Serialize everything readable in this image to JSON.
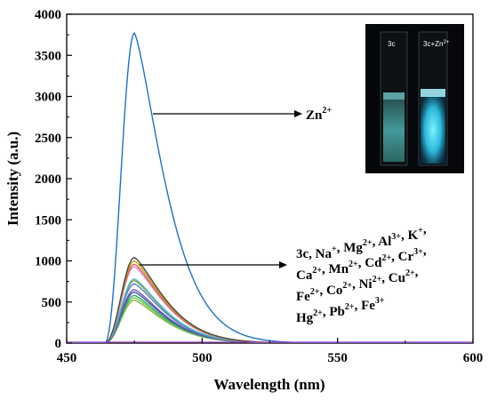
{
  "chart_data": {
    "type": "line",
    "title": "",
    "xlabel": "Wavelength (nm)",
    "ylabel": "Intensity (a.u.)",
    "xlim": [
      450,
      600
    ],
    "ylim": [
      0,
      4000
    ],
    "xticks": [
      450,
      500,
      550,
      600
    ],
    "yticks": [
      0,
      500,
      1000,
      1500,
      2000,
      2500,
      3000,
      3500,
      4000
    ],
    "grid": false,
    "legend": "none",
    "peak_wavelength": 475,
    "series": [
      {
        "label_group": "zn",
        "peak": 3770,
        "color": "#1f6fc9"
      },
      {
        "label_group": "others",
        "peak": 1040,
        "color": "#4a4a4a"
      },
      {
        "label_group": "others",
        "peak": 1000,
        "color": "#c2a000"
      },
      {
        "label_group": "others",
        "peak": 960,
        "color": "#e0605a"
      },
      {
        "label_group": "others",
        "peak": 930,
        "color": "#d98cd2"
      },
      {
        "label_group": "others",
        "peak": 780,
        "color": "#3fbcd8"
      },
      {
        "label_group": "others",
        "peak": 760,
        "color": "#9a9a30"
      },
      {
        "label_group": "others",
        "peak": 720,
        "color": "#4a7fd0"
      },
      {
        "label_group": "others",
        "peak": 650,
        "color": "#7a4fbf"
      },
      {
        "label_group": "others",
        "peak": 620,
        "color": "#3a5fa0"
      },
      {
        "label_group": "others",
        "peak": 580,
        "color": "#2eaa60"
      },
      {
        "label_group": "others",
        "peak": 550,
        "color": "#6fcf4a"
      },
      {
        "label_group": "others",
        "peak": 520,
        "color": "#8ab04a"
      }
    ],
    "annotations": {
      "zn": {
        "base": "Zn",
        "sup": "2+"
      },
      "others_lines": [
        [
          [
            "3c, Na",
            "+"
          ],
          [
            ", Mg",
            "2+"
          ],
          [
            ", Al",
            "3+"
          ],
          [
            ", K",
            "+"
          ],
          [
            ",",
            ""
          ]
        ],
        [
          [
            "Ca",
            "2+"
          ],
          [
            ", Mn",
            "2+"
          ],
          [
            ", Cd",
            "2+"
          ],
          [
            ", Cr",
            "3+"
          ],
          [
            ",",
            ""
          ]
        ],
        [
          [
            "Fe",
            "2+"
          ],
          [
            ", Co",
            "2+"
          ],
          [
            ", Ni",
            "2+"
          ],
          [
            ", Cu",
            "2+"
          ],
          [
            ",",
            ""
          ]
        ],
        [
          [
            "Hg",
            "2+"
          ],
          [
            ", Pb",
            "2+"
          ],
          [
            ", Fe",
            "3+"
          ]
        ]
      ]
    },
    "inset": {
      "left_label": "3c",
      "right_label_base": "3c+Zn",
      "right_label_sup": "2+"
    }
  }
}
